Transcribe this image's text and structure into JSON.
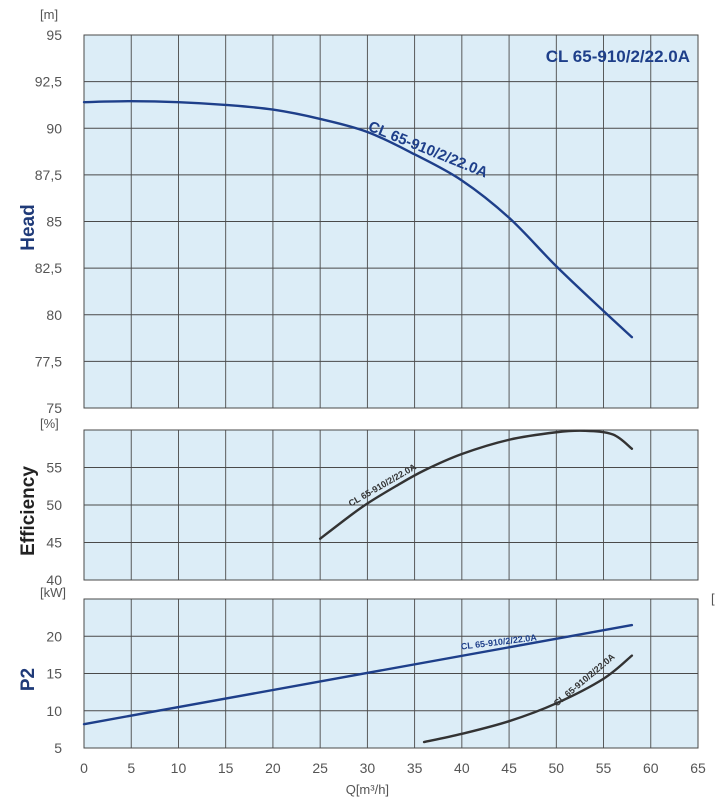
{
  "chart_data": [
    {
      "panel": "head",
      "type": "line",
      "title": "CL 65-910/2/22.0A",
      "ylabel": "Head",
      "yunit": "[m]",
      "ylim": [
        75,
        95
      ],
      "yticks": [
        "75",
        "77,5",
        "80",
        "82,5",
        "85",
        "87,5",
        "90",
        "92,5",
        "95"
      ],
      "xlim": [
        0,
        65
      ],
      "grid": true,
      "series": [
        {
          "name": "CL 65-910/2/22.0A",
          "color": "#1e3f8a",
          "x": [
            0,
            5,
            10,
            15,
            20,
            25,
            30,
            35,
            40,
            45,
            50,
            55,
            58
          ],
          "y": [
            91.4,
            91.45,
            91.4,
            91.25,
            91.0,
            90.5,
            89.8,
            88.6,
            87.2,
            85.2,
            82.6,
            80.2,
            78.8
          ]
        }
      ]
    },
    {
      "panel": "efficiency",
      "type": "line",
      "ylabel": "Efficiency",
      "yunit": "[%]",
      "ylim": [
        40,
        60
      ],
      "yticks": [
        "40",
        "45",
        "50",
        "55"
      ],
      "xlim": [
        0,
        65
      ],
      "grid": true,
      "series": [
        {
          "name": "CL 65-910/2/22.0A",
          "color": "#333333",
          "x": [
            25,
            28,
            30,
            33,
            36,
            40,
            45,
            50,
            53,
            56,
            58
          ],
          "y": [
            45.5,
            48.4,
            50.2,
            52.5,
            54.6,
            56.8,
            58.7,
            59.7,
            59.9,
            59.4,
            57.5
          ]
        }
      ]
    },
    {
      "panel": "power",
      "type": "line",
      "ylabel": "P2",
      "yunit": "[kW]",
      "xlabel": "Q[m³/h]",
      "ylim": [
        5,
        25
      ],
      "yticks": [
        "5",
        "10",
        "15",
        "20"
      ],
      "xlim": [
        0,
        65
      ],
      "xticks": [
        "0",
        "5",
        "10",
        "15",
        "20",
        "25",
        "30",
        "35",
        "40",
        "45",
        "50",
        "55",
        "60",
        "65"
      ],
      "grid": true,
      "series": [
        {
          "name": "CL 65-910/2/22.0A",
          "color": "#1e3f8a",
          "x": [
            0,
            58
          ],
          "y": [
            8.2,
            21.5
          ]
        },
        {
          "name": "CL 65-910/2/22.0A",
          "color": "#333333",
          "x": [
            36,
            40,
            45,
            50,
            55,
            58
          ],
          "y": [
            5.8,
            6.9,
            8.6,
            11.0,
            14.3,
            17.4
          ]
        }
      ]
    }
  ],
  "colors": {
    "plot_bg": "#dcedf7",
    "grid": "#4a4a4a",
    "accent_blue": "#1e3f8a",
    "curve_dark": "#333333"
  },
  "right_edge_mark": "["
}
